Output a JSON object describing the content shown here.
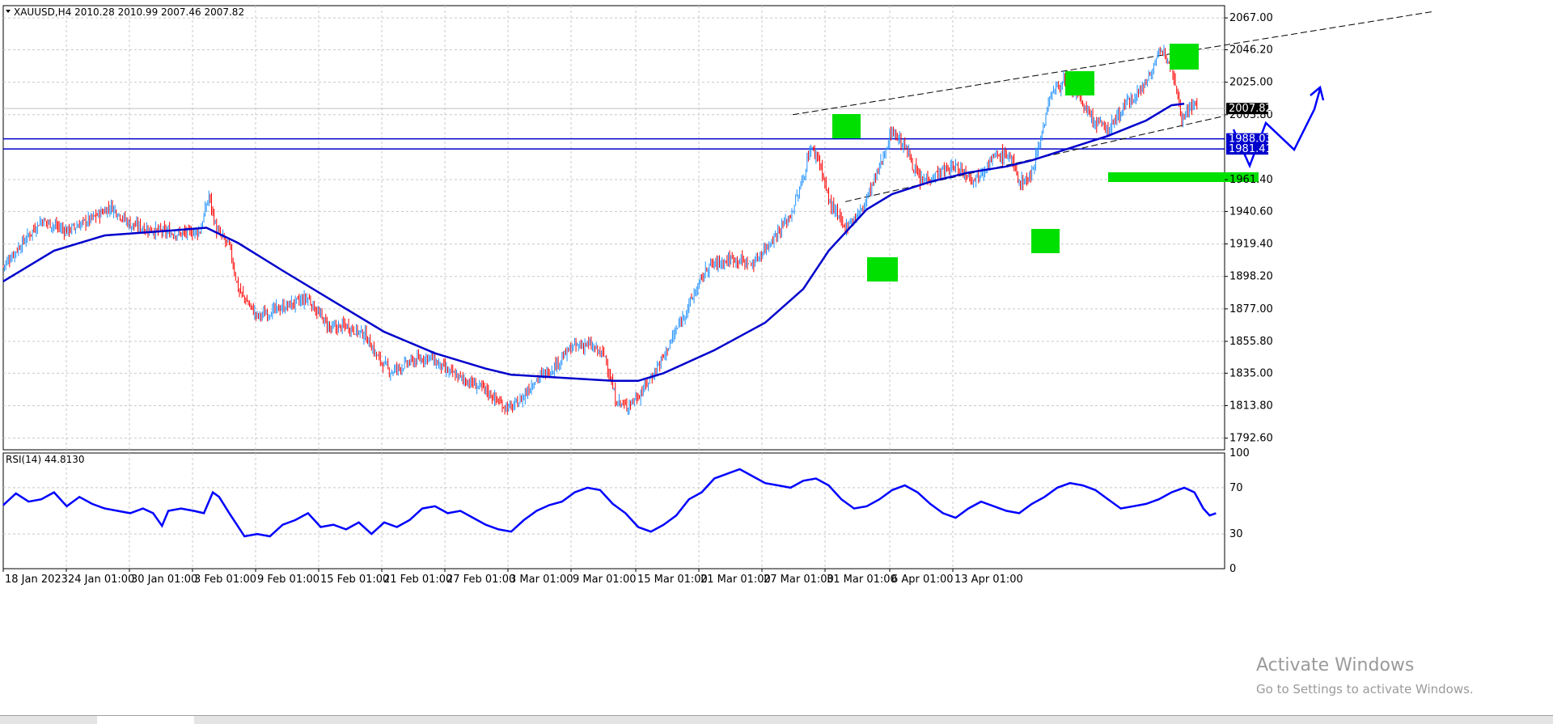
{
  "window": {
    "symbol_header": "XAUUSD,H4  2010.28 2010.99 2007.46 2007.82",
    "rsi_header": "RSI(14) 44.8130"
  },
  "watermark": {
    "line1": "Activate Windows",
    "line2": "Go to Settings to activate Windows."
  },
  "colors": {
    "bull": "#1e90ff",
    "bear": "#ff0000",
    "ma": "#0000cc",
    "rsi": "#0000ff",
    "hline": "#0000cc",
    "highlight": "#00e000",
    "price_tag_current": "#000000"
  },
  "icons": [
    "dropdown-triangle-icon"
  ],
  "tabs": [
    "",
    "",
    "",
    "",
    "",
    "",
    "",
    "",
    "",
    "",
    "",
    "",
    "",
    "",
    "",
    "",
    ""
  ],
  "chart_data": [
    {
      "type": "candlestick",
      "instrument": "XAUUSD",
      "timeframe": "H4",
      "ylim": [
        1785,
        2075
      ],
      "y_ticks": [
        "2067.00",
        "2046.20",
        "2025.00",
        "2003.80",
        "1961.40",
        "1940.60",
        "1919.40",
        "1898.20",
        "1877.00",
        "1855.80",
        "1835.00",
        "1813.80",
        "1792.60"
      ],
      "x_ticks": [
        "18 Jan 2023",
        "24 Jan 01:00",
        "30 Jan 01:00",
        "3 Feb 01:00",
        "9 Feb 01:00",
        "15 Feb 01:00",
        "21 Feb 01:00",
        "27 Feb 01:00",
        "3 Mar 01:00",
        "9 Mar 01:00",
        "15 Mar 01:00",
        "21 Mar 01:00",
        "27 Mar 01:00",
        "31 Mar 01:00",
        "6 Apr 01:00",
        "13 Apr 01:00"
      ],
      "close_path_anchors": [
        [
          0,
          1905
        ],
        [
          15,
          1920
        ],
        [
          30,
          1935
        ],
        [
          50,
          1928
        ],
        [
          70,
          1936
        ],
        [
          85,
          1944
        ],
        [
          100,
          1932
        ],
        [
          120,
          1928
        ],
        [
          140,
          1926
        ],
        [
          155,
          1928
        ],
        [
          162,
          1951
        ],
        [
          168,
          1928
        ],
        [
          178,
          1918
        ],
        [
          185,
          1890
        ],
        [
          200,
          1872
        ],
        [
          220,
          1878
        ],
        [
          240,
          1884
        ],
        [
          248,
          1874
        ],
        [
          258,
          1864
        ],
        [
          270,
          1866
        ],
        [
          285,
          1860
        ],
        [
          295,
          1845
        ],
        [
          305,
          1836
        ],
        [
          320,
          1842
        ],
        [
          335,
          1846
        ],
        [
          350,
          1836
        ],
        [
          365,
          1830
        ],
        [
          380,
          1824
        ],
        [
          393,
          1814
        ],
        [
          400,
          1812
        ],
        [
          408,
          1818
        ],
        [
          418,
          1830
        ],
        [
          432,
          1838
        ],
        [
          448,
          1852
        ],
        [
          460,
          1854
        ],
        [
          474,
          1846
        ],
        [
          482,
          1818
        ],
        [
          490,
          1813
        ],
        [
          500,
          1820
        ],
        [
          510,
          1832
        ],
        [
          520,
          1846
        ],
        [
          540,
          1880
        ],
        [
          555,
          1905
        ],
        [
          575,
          1910
        ],
        [
          590,
          1906
        ],
        [
          605,
          1922
        ],
        [
          620,
          1938
        ],
        [
          630,
          1962
        ],
        [
          635,
          1982
        ],
        [
          642,
          1976
        ],
        [
          650,
          1948
        ],
        [
          662,
          1930
        ],
        [
          675,
          1940
        ],
        [
          688,
          1965
        ],
        [
          700,
          1994
        ],
        [
          712,
          1980
        ],
        [
          722,
          1960
        ],
        [
          735,
          1965
        ],
        [
          750,
          1970
        ],
        [
          765,
          1962
        ],
        [
          780,
          1976
        ],
        [
          792,
          1978
        ],
        [
          800,
          1960
        ],
        [
          808,
          1962
        ],
        [
          818,
          1992
        ],
        [
          825,
          2018
        ],
        [
          835,
          2026
        ],
        [
          845,
          2018
        ],
        [
          858,
          2000
        ],
        [
          870,
          1994
        ],
        [
          885,
          2012
        ],
        [
          898,
          2022
        ],
        [
          908,
          2040
        ],
        [
          915,
          2046
        ],
        [
          922,
          2030
        ],
        [
          928,
          2002
        ],
        [
          935,
          2010
        ]
      ],
      "last_price": 2007.82
    },
    {
      "type": "line",
      "name": "MA",
      "values_path": [
        [
          0,
          1895
        ],
        [
          40,
          1915
        ],
        [
          80,
          1925
        ],
        [
          130,
          1928
        ],
        [
          160,
          1930
        ],
        [
          185,
          1920
        ],
        [
          220,
          1902
        ],
        [
          260,
          1882
        ],
        [
          300,
          1862
        ],
        [
          340,
          1848
        ],
        [
          380,
          1838
        ],
        [
          400,
          1834
        ],
        [
          440,
          1832
        ],
        [
          480,
          1830
        ],
        [
          500,
          1830
        ],
        [
          520,
          1835
        ],
        [
          560,
          1850
        ],
        [
          600,
          1868
        ],
        [
          630,
          1890
        ],
        [
          650,
          1915
        ],
        [
          680,
          1942
        ],
        [
          700,
          1952
        ],
        [
          730,
          1960
        ],
        [
          760,
          1966
        ],
        [
          790,
          1970
        ],
        [
          810,
          1974
        ],
        [
          840,
          1982
        ],
        [
          870,
          1990
        ],
        [
          900,
          2000
        ],
        [
          920,
          2010
        ],
        [
          930,
          2011
        ]
      ]
    },
    {
      "type": "line",
      "name": "RSI(14)",
      "ylim": [
        0,
        100
      ],
      "y_ticks": [
        "100",
        "70",
        "30",
        "0"
      ],
      "values_path": [
        [
          0,
          55
        ],
        [
          10,
          65
        ],
        [
          20,
          58
        ],
        [
          30,
          60
        ],
        [
          40,
          66
        ],
        [
          50,
          54
        ],
        [
          60,
          62
        ],
        [
          70,
          56
        ],
        [
          80,
          52
        ],
        [
          90,
          50
        ],
        [
          100,
          48
        ],
        [
          110,
          52
        ],
        [
          118,
          48
        ],
        [
          125,
          37
        ],
        [
          130,
          50
        ],
        [
          140,
          52
        ],
        [
          150,
          50
        ],
        [
          158,
          48
        ],
        [
          165,
          66
        ],
        [
          170,
          62
        ],
        [
          178,
          48
        ],
        [
          190,
          28
        ],
        [
          200,
          30
        ],
        [
          210,
          28
        ],
        [
          220,
          38
        ],
        [
          230,
          42
        ],
        [
          240,
          48
        ],
        [
          250,
          36
        ],
        [
          260,
          38
        ],
        [
          270,
          34
        ],
        [
          280,
          40
        ],
        [
          290,
          30
        ],
        [
          300,
          40
        ],
        [
          310,
          36
        ],
        [
          320,
          42
        ],
        [
          330,
          52
        ],
        [
          340,
          54
        ],
        [
          350,
          48
        ],
        [
          360,
          50
        ],
        [
          370,
          44
        ],
        [
          380,
          38
        ],
        [
          390,
          34
        ],
        [
          400,
          32
        ],
        [
          410,
          42
        ],
        [
          420,
          50
        ],
        [
          430,
          55
        ],
        [
          440,
          58
        ],
        [
          450,
          66
        ],
        [
          460,
          70
        ],
        [
          470,
          68
        ],
        [
          480,
          56
        ],
        [
          490,
          48
        ],
        [
          500,
          36
        ],
        [
          510,
          32
        ],
        [
          520,
          38
        ],
        [
          530,
          46
        ],
        [
          540,
          60
        ],
        [
          550,
          66
        ],
        [
          560,
          78
        ],
        [
          570,
          82
        ],
        [
          580,
          86
        ],
        [
          590,
          80
        ],
        [
          600,
          74
        ],
        [
          610,
          72
        ],
        [
          620,
          70
        ],
        [
          630,
          76
        ],
        [
          640,
          78
        ],
        [
          650,
          72
        ],
        [
          660,
          60
        ],
        [
          670,
          52
        ],
        [
          680,
          54
        ],
        [
          690,
          60
        ],
        [
          700,
          68
        ],
        [
          710,
          72
        ],
        [
          720,
          66
        ],
        [
          730,
          56
        ],
        [
          740,
          48
        ],
        [
          750,
          44
        ],
        [
          760,
          52
        ],
        [
          770,
          58
        ],
        [
          780,
          54
        ],
        [
          790,
          50
        ],
        [
          800,
          48
        ],
        [
          810,
          56
        ],
        [
          820,
          62
        ],
        [
          830,
          70
        ],
        [
          840,
          74
        ],
        [
          850,
          72
        ],
        [
          860,
          68
        ],
        [
          870,
          60
        ],
        [
          880,
          52
        ],
        [
          890,
          54
        ],
        [
          900,
          56
        ],
        [
          910,
          60
        ],
        [
          920,
          66
        ],
        [
          930,
          70
        ],
        [
          938,
          66
        ],
        [
          945,
          52
        ],
        [
          950,
          46
        ],
        [
          955,
          48
        ]
      ]
    }
  ],
  "price_tags": [
    "2067.00",
    "2007.82",
    "1988.03",
    "1981.41"
  ]
}
